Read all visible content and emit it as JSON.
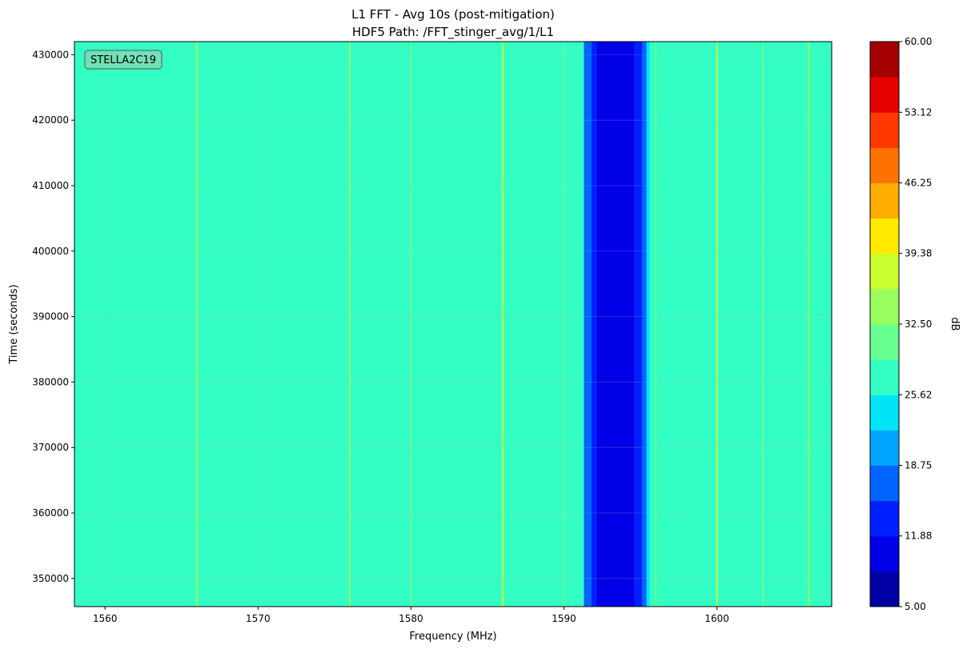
{
  "chart_data": {
    "type": "heatmap",
    "title": "L1 FFT - Avg 10s (post-mitigation)",
    "subtitle": "HDF5 Path: /FFT_stinger_avg/1/L1",
    "xlabel": "Frequency (MHz)",
    "ylabel": "Time (seconds)",
    "xlim": [
      1558,
      1607.5
    ],
    "ylim": [
      345700,
      432000
    ],
    "x_ticks": [
      1560,
      1570,
      1580,
      1590,
      1600
    ],
    "x_tick_labels": [
      "1560",
      "1570",
      "1580",
      "1590",
      "1600"
    ],
    "y_ticks": [
      350000,
      360000,
      370000,
      380000,
      390000,
      400000,
      410000,
      420000,
      430000
    ],
    "y_tick_labels": [
      "350000",
      "360000",
      "370000",
      "380000",
      "390000",
      "400000",
      "410000",
      "420000",
      "430000"
    ],
    "annotation": "STELLA2C19",
    "background_level_db": 27.5,
    "spurs": [
      {
        "freq": 1566.0,
        "db": 33.5
      },
      {
        "freq": 1576.0,
        "db": 33.5
      },
      {
        "freq": 1580.0,
        "db": 32.0
      },
      {
        "freq": 1586.0,
        "db": 38.0
      },
      {
        "freq": 1590.0,
        "db": 32.0
      },
      {
        "freq": 1596.0,
        "db": 32.0
      },
      {
        "freq": 1600.0,
        "db": 38.0
      },
      {
        "freq": 1603.0,
        "db": 31.0
      },
      {
        "freq": 1606.0,
        "db": 34.0
      }
    ],
    "notch_bands": [
      {
        "from": 1591.3,
        "to": 1591.8,
        "db": 18.0
      },
      {
        "from": 1591.8,
        "to": 1592.1,
        "db": 15.0
      },
      {
        "from": 1592.1,
        "to": 1594.6,
        "db": 9.5
      },
      {
        "from": 1594.6,
        "to": 1595.1,
        "db": 15.0
      },
      {
        "from": 1595.1,
        "to": 1595.4,
        "db": 18.0
      },
      {
        "from": 1595.4,
        "to": 1595.6,
        "db": 24.0
      }
    ],
    "colorbar": {
      "label": "dB",
      "min": 5.0,
      "max": 60.0,
      "levels": 16,
      "tick_values": [
        5.0,
        11.88,
        18.75,
        25.62,
        32.5,
        39.38,
        46.25,
        53.12,
        60.0
      ],
      "tick_labels": [
        "5.00",
        "11.88",
        "18.75",
        "25.62",
        "32.50",
        "39.38",
        "46.25",
        "53.12",
        "60.00"
      ],
      "colors": [
        "#0000a4",
        "#0000e8",
        "#0020ff",
        "#0064ff",
        "#00a4ff",
        "#00e4f8",
        "#33ffc4",
        "#66ff90",
        "#99ff5e",
        "#c8ff2e",
        "#ffea00",
        "#ffac00",
        "#ff7200",
        "#ff3800",
        "#e80000",
        "#a40000"
      ]
    },
    "grid": true
  }
}
